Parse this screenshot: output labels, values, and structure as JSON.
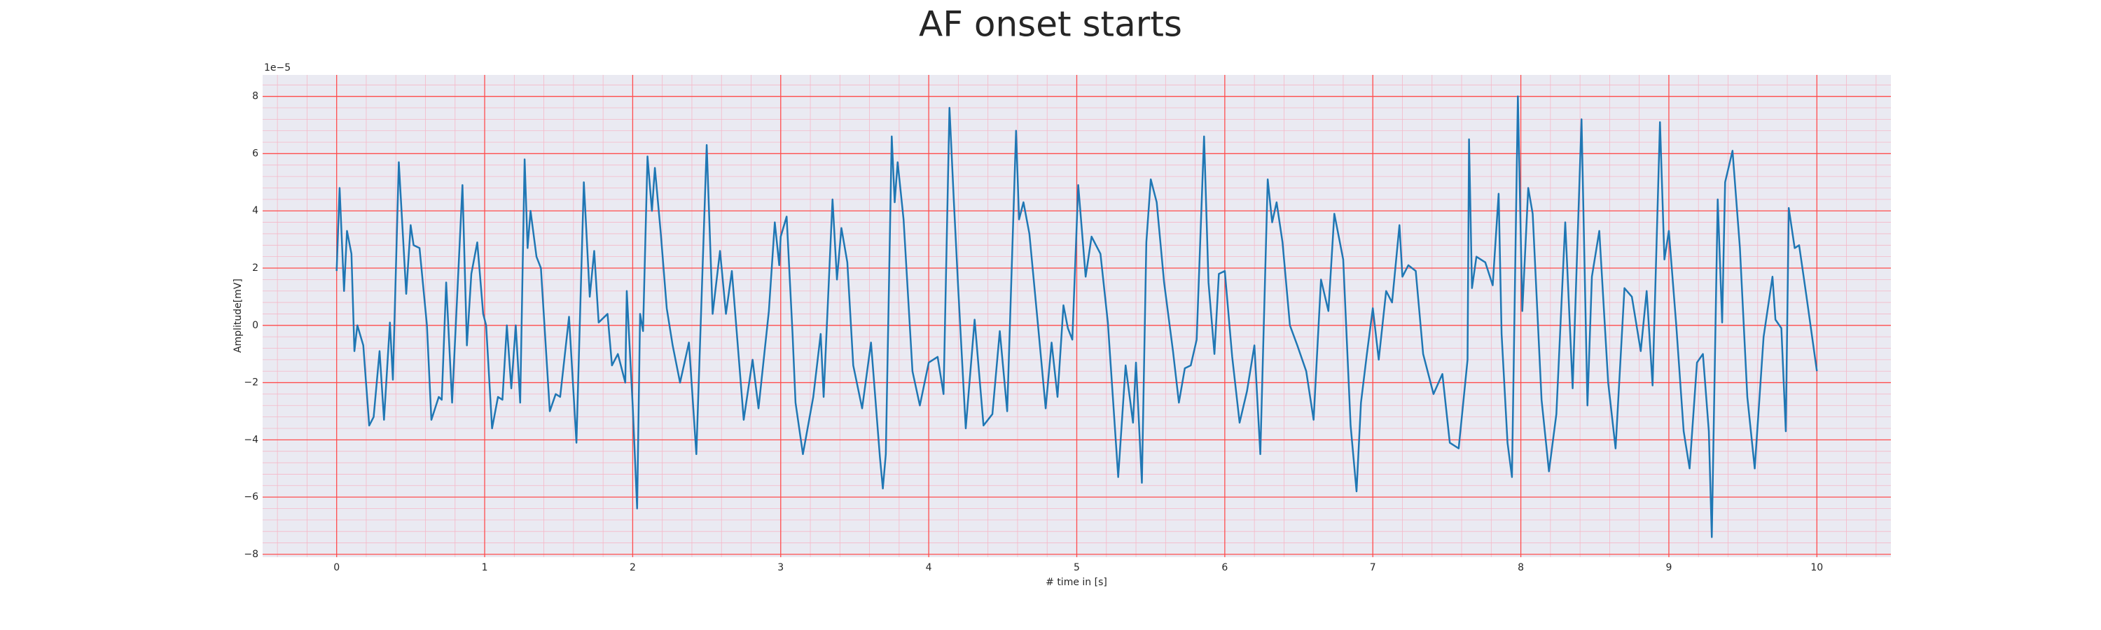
{
  "chart_data": {
    "type": "line",
    "title": "AF onset starts",
    "xlabel": "# time in [s]",
    "ylabel": "Amplitude[mV]",
    "y_offset_label": "1e−5",
    "xlim": [
      -0.5,
      10.5
    ],
    "ylim": [
      -8.1,
      8.75
    ],
    "xticks": [
      0,
      1,
      2,
      3,
      4,
      5,
      6,
      7,
      8,
      9,
      10
    ],
    "yticks": [
      {
        "value": -8,
        "label": "−8"
      },
      {
        "value": -6,
        "label": "−6"
      },
      {
        "value": -4,
        "label": "−4"
      },
      {
        "value": -2,
        "label": "−2"
      },
      0,
      2,
      4,
      6,
      8
    ],
    "grid": true,
    "minor_grid": true,
    "grid_color": "#ff4d4d",
    "minor_grid_color": "#f5b8c8",
    "background": "#eaeaf2",
    "x": [
      0,
      0.02,
      0.05,
      0.07,
      0.1,
      0.12,
      0.14,
      0.18,
      0.22,
      0.25,
      0.29,
      0.32,
      0.36,
      0.38,
      0.42,
      0.47,
      0.5,
      0.52,
      0.56,
      0.61,
      0.64,
      0.69,
      0.71,
      0.74,
      0.78,
      0.85,
      0.88,
      0.91,
      0.95,
      0.99,
      1.01,
      1.05,
      1.09,
      1.12,
      1.15,
      1.18,
      1.21,
      1.24,
      1.27,
      1.29,
      1.31,
      1.35,
      1.38,
      1.44,
      1.48,
      1.51,
      1.57,
      1.62,
      1.67,
      1.71,
      1.74,
      1.77,
      1.83,
      1.86,
      1.9,
      1.95,
      1.96,
      2.0,
      2.03,
      2.05,
      2.07,
      2.1,
      2.13,
      2.15,
      2.19,
      2.23,
      2.27,
      2.32,
      2.38,
      2.43,
      2.5,
      2.54,
      2.59,
      2.63,
      2.67,
      2.75,
      2.81,
      2.85,
      2.92,
      2.96,
      2.99,
      3.0,
      3.04,
      3.08,
      3.1,
      3.15,
      3.22,
      3.27,
      3.29,
      3.35,
      3.38,
      3.41,
      3.45,
      3.49,
      3.55,
      3.61,
      3.67,
      3.69,
      3.71,
      3.75,
      3.77,
      3.79,
      3.83,
      3.89,
      3.94,
      4.0,
      4.06,
      4.1,
      4.14,
      4.17,
      4.2,
      4.25,
      4.31,
      4.37,
      4.43,
      4.48,
      4.53,
      4.59,
      4.61,
      4.64,
      4.68,
      4.74,
      4.79,
      4.83,
      4.87,
      4.91,
      4.94,
      4.97,
      5.01,
      5.06,
      5.1,
      5.16,
      5.21,
      5.28,
      5.33,
      5.38,
      5.4,
      5.44,
      5.47,
      5.5,
      5.54,
      5.59,
      5.65,
      5.69,
      5.73,
      5.77,
      5.81,
      5.86,
      5.89,
      5.93,
      5.96,
      6.0,
      6.05,
      6.1,
      6.15,
      6.2,
      6.24,
      6.29,
      6.32,
      6.35,
      6.39,
      6.44,
      6.49,
      6.55,
      6.6,
      6.65,
      6.7,
      6.74,
      6.8,
      6.85,
      6.89,
      6.92,
      6.96,
      7.0,
      7.04,
      7.09,
      7.13,
      7.18,
      7.2,
      7.24,
      7.29,
      7.34,
      7.41,
      7.47,
      7.52,
      7.58,
      7.64,
      7.65,
      7.67,
      7.7,
      7.76,
      7.81,
      7.85,
      7.87,
      7.91,
      7.94,
      7.98,
      8.01,
      8.05,
      8.08,
      8.14,
      8.19,
      8.24,
      8.3,
      8.35,
      8.41,
      8.45,
      8.48,
      8.53,
      8.59,
      8.64,
      8.7,
      8.75,
      8.81,
      8.85,
      8.89,
      8.94,
      8.97,
      9.0,
      9.05,
      9.1,
      9.14,
      9.19,
      9.23,
      9.27,
      9.29,
      9.33,
      9.36,
      9.38,
      9.43,
      9.48,
      9.53,
      9.58,
      9.64,
      9.7,
      9.72,
      9.76,
      9.79,
      9.81,
      9.85,
      9.88,
      9.93,
      10.0
    ],
    "series": [
      {
        "color": "#1f77b4",
        "values": [
          1.9,
          4.8,
          1.2,
          3.3,
          2.5,
          -0.9,
          0,
          -0.7,
          -3.5,
          -3.2,
          -0.9,
          -3.3,
          0.1,
          -1.9,
          5.7,
          1.1,
          3.5,
          2.8,
          2.7,
          0,
          -3.3,
          -2.5,
          -2.6,
          1.5,
          -2.7,
          4.9,
          -0.7,
          1.8,
          2.9,
          0.4,
          0,
          -3.6,
          -2.5,
          -2.6,
          0,
          -2.2,
          0,
          -2.7,
          5.8,
          2.7,
          4.0,
          2.4,
          2.0,
          -3.0,
          -2.4,
          -2.5,
          0.3,
          -4.1,
          5.0,
          1.0,
          2.6,
          0.1,
          0.4,
          -1.4,
          -1.0,
          -2.0,
          1.2,
          -2.8,
          -6.4,
          0.4,
          -0.2,
          5.9,
          4.0,
          5.5,
          3.2,
          0.6,
          -0.7,
          -2.0,
          -0.6,
          -4.5,
          6.3,
          0.4,
          2.6,
          0.4,
          1.9,
          -3.3,
          -1.2,
          -2.9,
          0.5,
          3.6,
          2.1,
          3.1,
          3.8,
          -0.3,
          -2.7,
          -4.5,
          -2.5,
          -0.3,
          -2.5,
          4.4,
          1.6,
          3.4,
          2.2,
          -1.4,
          -2.9,
          -0.6,
          -4.6,
          -5.7,
          -4.5,
          6.6,
          4.3,
          5.7,
          3.7,
          -1.6,
          -2.8,
          -1.3,
          -1.1,
          -2.4,
          7.6,
          4.3,
          1.2,
          -3.6,
          0.2,
          -3.5,
          -3.1,
          -0.2,
          -3.0,
          6.8,
          3.7,
          4.3,
          3.2,
          -0.1,
          -2.9,
          -0.6,
          -2.5,
          0.7,
          -0.1,
          -0.5,
          4.9,
          1.7,
          3.1,
          2.5,
          0.1,
          -5.3,
          -1.4,
          -3.4,
          -1.3,
          -5.5,
          2.9,
          5.1,
          4.3,
          1.5,
          -0.9,
          -2.7,
          -1.5,
          -1.4,
          -0.5,
          6.6,
          1.5,
          -1.0,
          1.8,
          1.9,
          -1.1,
          -3.4,
          -2.3,
          -0.7,
          -4.5,
          5.1,
          3.6,
          4.3,
          2.9,
          0,
          -0.7,
          -1.6,
          -3.3,
          1.6,
          0.5,
          3.9,
          2.3,
          -3.5,
          -5.8,
          -2.7,
          -1.0,
          0.6,
          -1.2,
          1.2,
          0.8,
          3.5,
          1.7,
          2.1,
          1.9,
          -1.0,
          -2.4,
          -1.7,
          -4.1,
          -4.3,
          -1.2,
          6.5,
          1.3,
          2.4,
          2.2,
          1.4,
          4.6,
          -0.3,
          -4.1,
          -5.3,
          8.0,
          0.5,
          4.8,
          3.9,
          -2.6,
          -5.1,
          -3.1,
          3.6,
          -2.2,
          7.2,
          -2.8,
          1.7,
          3.3,
          -2.0,
          -4.3,
          1.3,
          1.0,
          -0.9,
          1.2,
          -2.1,
          7.1,
          2.3,
          3.3,
          0,
          -3.7,
          -5.0,
          -1.3,
          -1.0,
          -3.7,
          -7.4,
          4.4,
          0.1,
          5.0,
          6.1,
          2.7,
          -2.5,
          -5.0,
          -0.4,
          1.7,
          0.2,
          -0.1,
          -3.7,
          4.1,
          2.7,
          2.8,
          1.0,
          -1.6
        ]
      }
    ]
  }
}
